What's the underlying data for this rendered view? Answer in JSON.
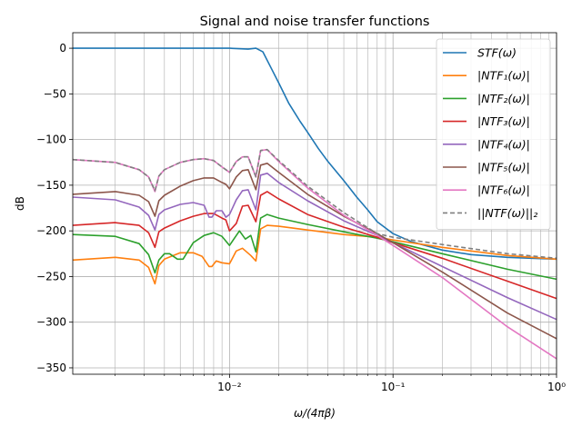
{
  "chart_data": {
    "type": "line",
    "title": "Signal and noise transfer functions",
    "xlabel": "ω/(4πβ)",
    "ylabel": "dB",
    "xscale": "log",
    "xlim": [
      0.0011,
      1.0
    ],
    "ylim": [
      -357,
      17
    ],
    "yticks": [
      0,
      -50,
      -100,
      -150,
      -200,
      -250,
      -300,
      -350
    ],
    "yticklabels": [
      "0",
      "−50",
      "−100",
      "−150",
      "−200",
      "−250",
      "−300",
      "−350"
    ],
    "xticks": [
      0.01,
      0.1,
      1
    ],
    "xticklabels": [
      "10⁻²",
      "10⁻¹",
      "10⁰"
    ],
    "grid": "major-and-minor",
    "legend_position": "top-right",
    "series": [
      {
        "name": "STF(ω)",
        "color": "#1f77b4",
        "dash": "solid",
        "x": [
          0.0011,
          0.002,
          0.005,
          0.01,
          0.013,
          0.0145,
          0.016,
          0.018,
          0.02,
          0.023,
          0.027,
          0.03,
          0.035,
          0.04,
          0.05,
          0.06,
          0.07,
          0.08,
          0.1,
          0.13,
          0.2,
          0.3,
          0.5,
          0.7,
          1.0
        ],
        "y": [
          0,
          0,
          0,
          0,
          -1,
          0,
          -4,
          -22,
          -38,
          -60,
          -80,
          -92,
          -110,
          -124,
          -145,
          -163,
          -177,
          -190,
          -203,
          -212,
          -221,
          -226,
          -229,
          -230,
          -231
        ]
      },
      {
        "name": "|NTF₁(ω)|",
        "color": "#ff7f0e",
        "dash": "solid",
        "x": [
          0.0011,
          0.002,
          0.0028,
          0.0032,
          0.0035,
          0.0037,
          0.004,
          0.005,
          0.006,
          0.0068,
          0.0075,
          0.0078,
          0.0083,
          0.009,
          0.01,
          0.011,
          0.012,
          0.0135,
          0.0145,
          0.0155,
          0.017,
          0.02,
          0.03,
          0.05,
          0.08,
          0.1,
          0.2,
          0.5,
          1.0
        ],
        "y": [
          -232,
          -229,
          -232,
          -240,
          -258,
          -238,
          -231,
          -224,
          -224,
          -228,
          -239,
          -239,
          -233,
          -235,
          -236,
          -222,
          -219,
          -227,
          -233,
          -198,
          -194,
          -195,
          -199,
          -204,
          -207,
          -210,
          -218,
          -227,
          -231
        ]
      },
      {
        "name": "|NTF₂(ω)|",
        "color": "#2ca02c",
        "dash": "solid",
        "x": [
          0.0011,
          0.002,
          0.0028,
          0.0032,
          0.0035,
          0.0037,
          0.004,
          0.0043,
          0.0048,
          0.0052,
          0.006,
          0.007,
          0.008,
          0.009,
          0.01,
          0.0115,
          0.0125,
          0.0135,
          0.0145,
          0.0155,
          0.017,
          0.02,
          0.03,
          0.05,
          0.08,
          0.1,
          0.2,
          0.5,
          1.0
        ],
        "y": [
          -204,
          -206,
          -214,
          -226,
          -246,
          -232,
          -225,
          -225,
          -231,
          -231,
          -213,
          -205,
          -202,
          -206,
          -216,
          -200,
          -209,
          -205,
          -223,
          -186,
          -182,
          -186,
          -193,
          -201,
          -208,
          -212,
          -225,
          -242,
          -253
        ]
      },
      {
        "name": "|NTF₃(ω)|",
        "color": "#d62728",
        "dash": "solid",
        "x": [
          0.0011,
          0.002,
          0.0028,
          0.0032,
          0.0035,
          0.0037,
          0.004,
          0.005,
          0.006,
          0.007,
          0.008,
          0.009,
          0.0095,
          0.01,
          0.011,
          0.012,
          0.013,
          0.0145,
          0.0155,
          0.017,
          0.02,
          0.03,
          0.05,
          0.08,
          0.1,
          0.2,
          0.5,
          1.0
        ],
        "y": [
          -194,
          -191,
          -194,
          -202,
          -218,
          -201,
          -197,
          -189,
          -184,
          -181,
          -181,
          -186,
          -188,
          -200,
          -192,
          -173,
          -172,
          -190,
          -161,
          -157,
          -165,
          -182,
          -196,
          -207,
          -213,
          -230,
          -255,
          -274
        ]
      },
      {
        "name": "|NTF₄(ω)|",
        "color": "#9467bd",
        "dash": "solid",
        "x": [
          0.0011,
          0.002,
          0.0028,
          0.0032,
          0.0035,
          0.0037,
          0.004,
          0.005,
          0.006,
          0.007,
          0.0075,
          0.0078,
          0.0083,
          0.009,
          0.0095,
          0.01,
          0.011,
          0.012,
          0.013,
          0.0145,
          0.0155,
          0.017,
          0.02,
          0.03,
          0.05,
          0.08,
          0.1,
          0.2,
          0.5,
          1.0
        ],
        "y": [
          -163,
          -166,
          -174,
          -183,
          -199,
          -182,
          -177,
          -171,
          -169,
          -172,
          -185,
          -185,
          -178,
          -178,
          -185,
          -182,
          -166,
          -156,
          -155,
          -177,
          -139,
          -137,
          -147,
          -167,
          -189,
          -205,
          -213,
          -239,
          -273,
          -297
        ]
      },
      {
        "name": "|NTF₅(ω)|",
        "color": "#8c564b",
        "dash": "solid",
        "x": [
          0.0011,
          0.002,
          0.0028,
          0.0032,
          0.0035,
          0.0037,
          0.004,
          0.005,
          0.006,
          0.007,
          0.008,
          0.009,
          0.0095,
          0.01,
          0.011,
          0.012,
          0.013,
          0.0145,
          0.0155,
          0.017,
          0.02,
          0.03,
          0.05,
          0.08,
          0.1,
          0.2,
          0.5,
          1.0
        ],
        "y": [
          -160,
          -157,
          -161,
          -168,
          -184,
          -167,
          -161,
          -151,
          -145,
          -142,
          -142,
          -147,
          -149,
          -154,
          -141,
          -134,
          -133,
          -155,
          -128,
          -126,
          -136,
          -160,
          -184,
          -203,
          -213,
          -245,
          -290,
          -318
        ]
      },
      {
        "name": "|NTF₆(ω)|",
        "color": "#e377c2",
        "dash": "solid",
        "x": [
          0.0011,
          0.002,
          0.0028,
          0.0032,
          0.0035,
          0.0037,
          0.004,
          0.005,
          0.006,
          0.007,
          0.008,
          0.009,
          0.0095,
          0.01,
          0.011,
          0.012,
          0.013,
          0.0145,
          0.0155,
          0.017,
          0.02,
          0.03,
          0.05,
          0.08,
          0.1,
          0.2,
          0.5,
          1.0
        ],
        "y": [
          -122,
          -125,
          -133,
          -141,
          -157,
          -140,
          -133,
          -125,
          -122,
          -121,
          -123,
          -130,
          -133,
          -136,
          -124,
          -119,
          -119,
          -141,
          -112,
          -111,
          -124,
          -153,
          -183,
          -205,
          -216,
          -251,
          -305,
          -340
        ]
      },
      {
        "name": "||NTF(ω)||₂",
        "color": "#7f7f7f",
        "dash": "dashed",
        "x": [
          0.0011,
          0.002,
          0.0028,
          0.0032,
          0.0035,
          0.0037,
          0.004,
          0.005,
          0.006,
          0.007,
          0.008,
          0.009,
          0.0095,
          0.01,
          0.011,
          0.012,
          0.013,
          0.0145,
          0.0155,
          0.017,
          0.02,
          0.03,
          0.05,
          0.08,
          0.1,
          0.2,
          0.5,
          1.0
        ],
        "y": [
          -122,
          -125,
          -133,
          -141,
          -156,
          -140,
          -133,
          -125,
          -122,
          -121,
          -123,
          -130,
          -133,
          -136,
          -124,
          -119,
          -119,
          -141,
          -112,
          -111,
          -123,
          -151,
          -180,
          -203,
          -207,
          -215,
          -225,
          -230
        ]
      }
    ]
  }
}
